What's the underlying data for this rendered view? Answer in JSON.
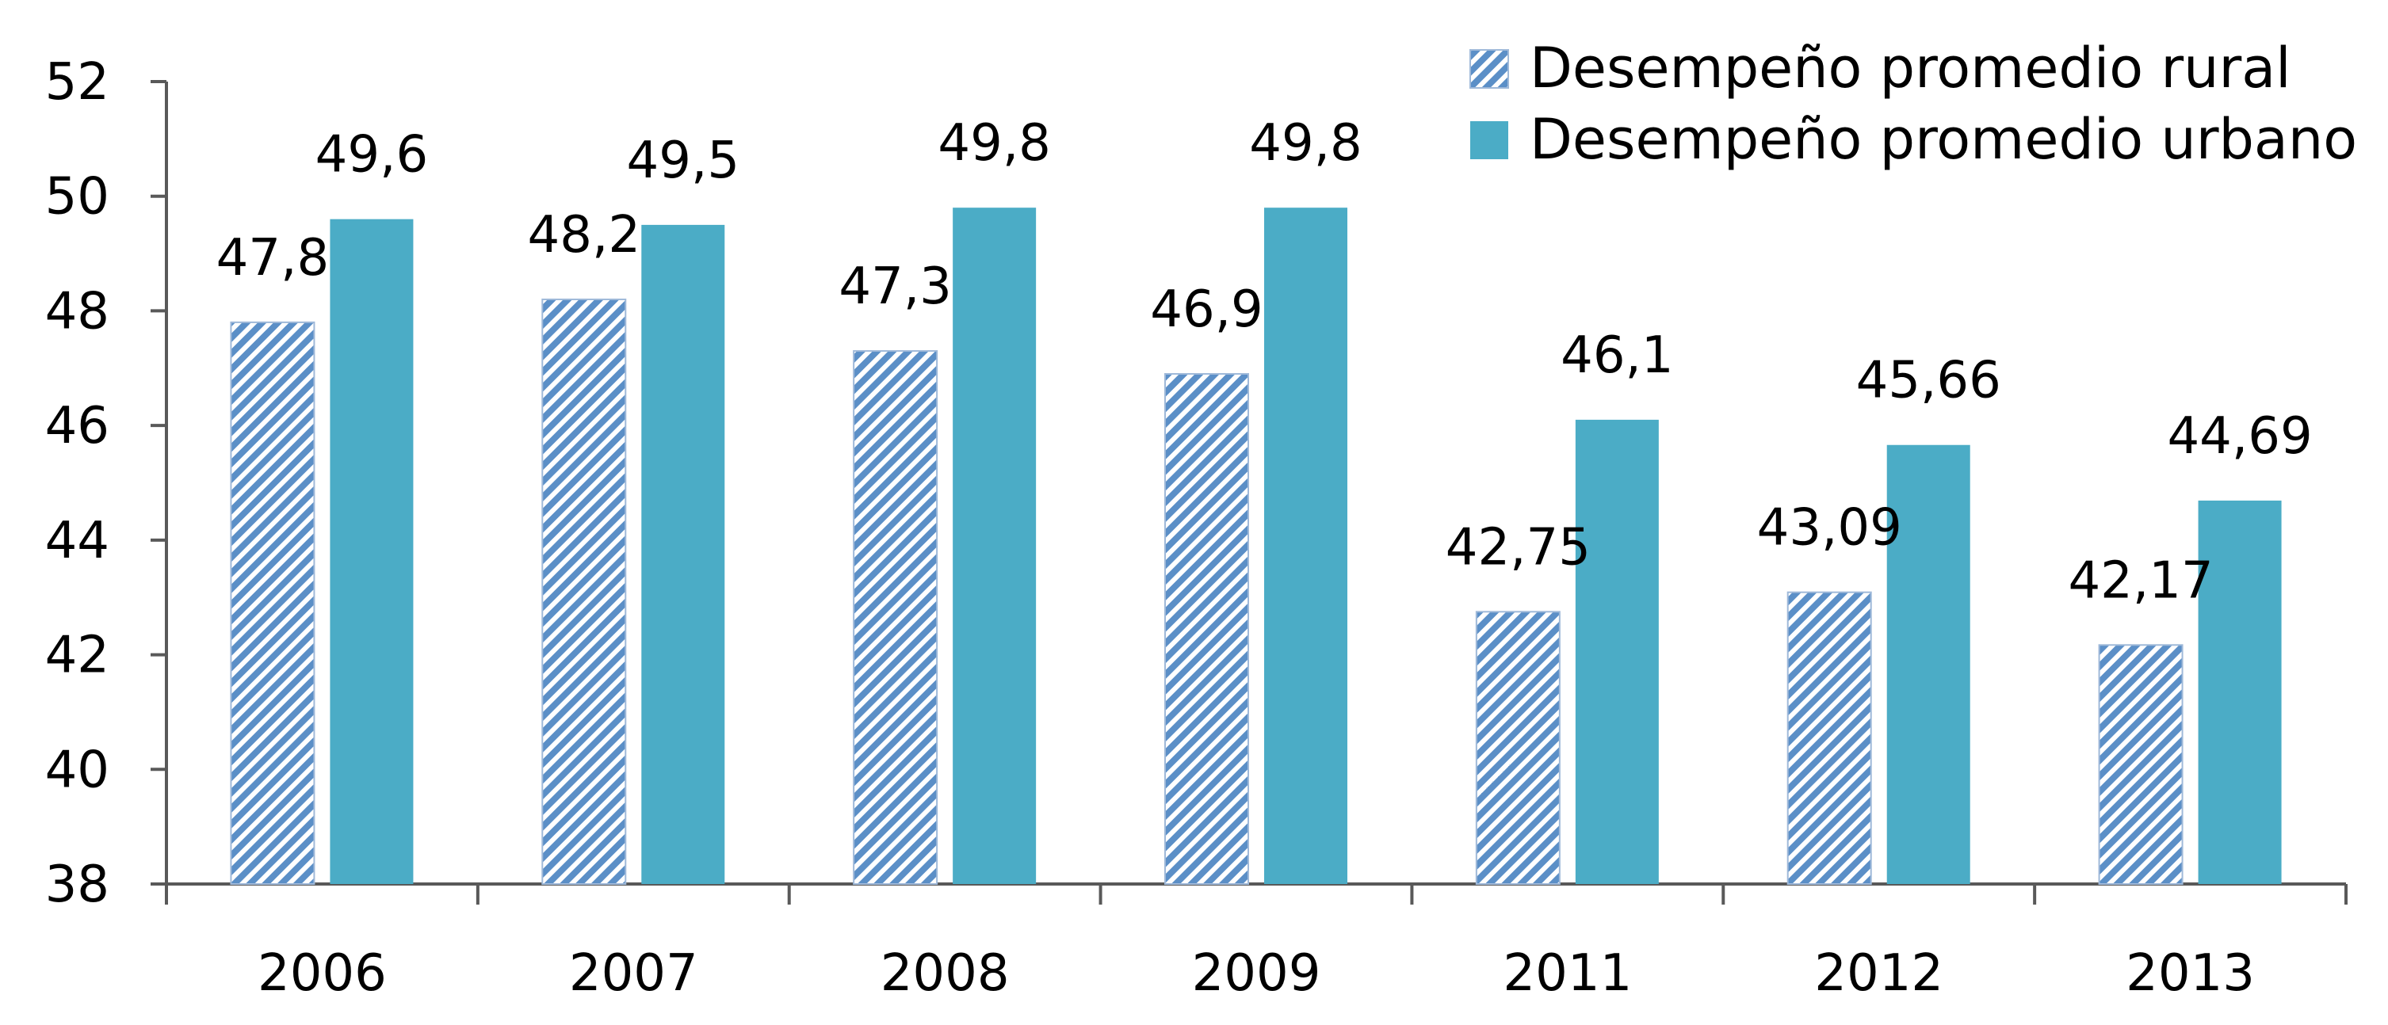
{
  "chart_data": {
    "type": "bar",
    "categories": [
      "2006",
      "2007",
      "2008",
      "2009",
      "2011",
      "2012",
      "2013"
    ],
    "series": [
      {
        "name": "Desempeño promedio rural",
        "values": [
          47.8,
          48.2,
          47.3,
          46.9,
          42.75,
          43.09,
          42.17
        ],
        "labels": [
          "47,8",
          "48,2",
          "47,3",
          "46,9",
          "42,75",
          "43,09",
          "42,17"
        ],
        "color": "#5b8fc7",
        "pattern": "diagonal-stripes"
      },
      {
        "name": "Desempeño promedio urbano",
        "values": [
          49.6,
          49.5,
          49.8,
          49.8,
          46.1,
          45.66,
          44.69
        ],
        "labels": [
          "49,6",
          "49,5",
          "49,8",
          "49,8",
          "46,1",
          "45,66",
          "44,69"
        ],
        "color": "#4bacc6",
        "pattern": "solid"
      }
    ],
    "y_ticks": [
      "38",
      "40",
      "42",
      "44",
      "46",
      "48",
      "50",
      "52"
    ],
    "ylim": [
      38,
      52
    ],
    "title": "",
    "xlabel": "",
    "ylabel": "",
    "grid": false,
    "legend_position": "top-right",
    "axis_color": "#595959"
  }
}
